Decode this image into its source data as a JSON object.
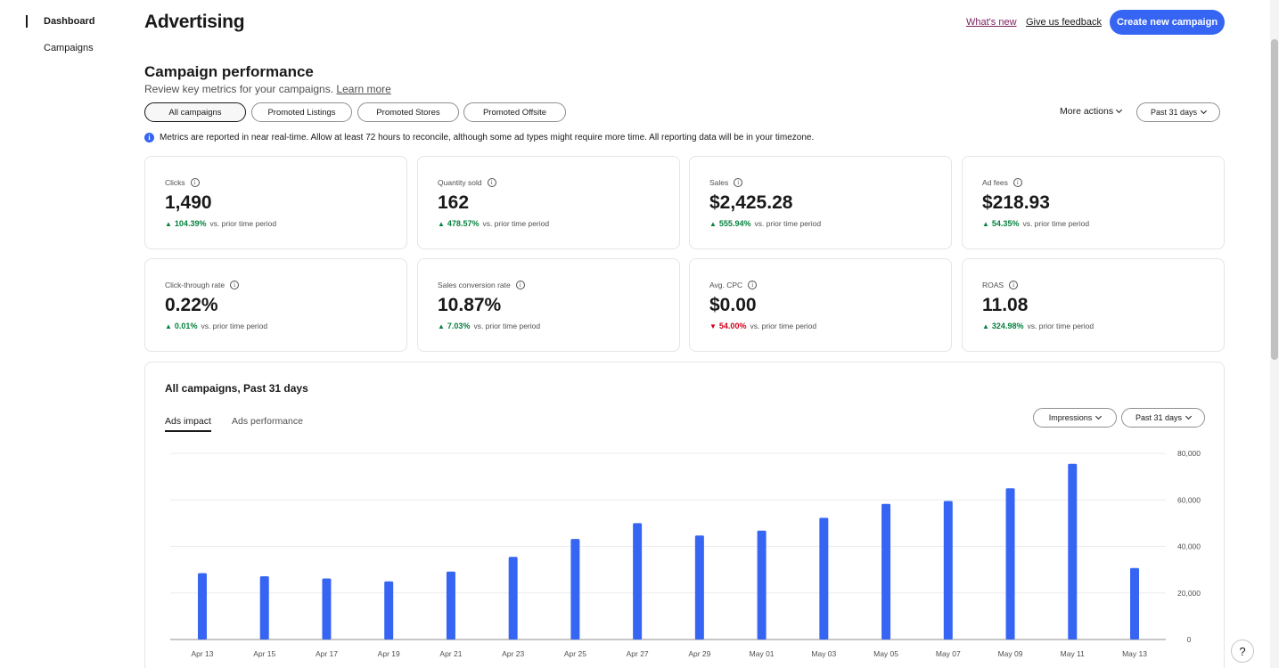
{
  "sidebar": {
    "items": [
      {
        "label": "Dashboard",
        "active": true
      },
      {
        "label": "Campaigns",
        "active": false
      }
    ]
  },
  "header": {
    "title": "Advertising",
    "whats_new": "What's new",
    "feedback": "Give us feedback",
    "create_button": "Create new campaign"
  },
  "performance": {
    "title": "Campaign performance",
    "subtitle": "Review key metrics for your campaigns.",
    "learn_more": "Learn more",
    "filters": [
      "All campaigns",
      "Promoted Listings",
      "Promoted Stores",
      "Promoted Offsite"
    ],
    "selected_filter": "All campaigns",
    "more_actions": "More actions",
    "date_range": "Past 31 days",
    "info_text": "Metrics are reported in near real-time. Allow at least 72 hours to reconcile, although some ad types might require more time. All reporting data will be in your timezone."
  },
  "metrics": [
    {
      "label": "Clicks",
      "value": "1,490",
      "change": "104.39%",
      "direction": "up",
      "compare": "vs. prior time period"
    },
    {
      "label": "Quantity sold",
      "value": "162",
      "change": "478.57%",
      "direction": "up",
      "compare": "vs. prior time period"
    },
    {
      "label": "Sales",
      "value": "$2,425.28",
      "change": "555.94%",
      "direction": "up",
      "compare": "vs. prior time period"
    },
    {
      "label": "Ad fees",
      "value": "$218.93",
      "change": "54.35%",
      "direction": "up",
      "compare": "vs. prior time period"
    },
    {
      "label": "Click-through rate",
      "value": "0.22%",
      "change": "0.01%",
      "direction": "up",
      "compare": "vs. prior time period"
    },
    {
      "label": "Sales conversion rate",
      "value": "10.87%",
      "change": "7.03%",
      "direction": "up",
      "compare": "vs. prior time period"
    },
    {
      "label": "Avg. CPC",
      "value": "$0.00",
      "change": "54.00%",
      "direction": "down",
      "compare": "vs. prior time period"
    },
    {
      "label": "ROAS",
      "value": "11.08",
      "change": "324.98%",
      "direction": "up",
      "compare": "vs. prior time period"
    }
  ],
  "chart_panel": {
    "title": "All campaigns, Past 31 days",
    "tabs": [
      {
        "label": "Ads impact",
        "active": true
      },
      {
        "label": "Ads performance",
        "active": false
      }
    ],
    "metric_select": "Impressions",
    "date_select": "Past 31 days"
  },
  "colors": {
    "accent": "#3665f3",
    "positive": "#05823f",
    "negative": "#d0011b",
    "bar": "#3665f3"
  },
  "chart_data": {
    "type": "bar",
    "categories": [
      "Apr 13",
      "Apr 15",
      "Apr 17",
      "Apr 19",
      "Apr 21",
      "Apr 23",
      "Apr 25",
      "Apr 27",
      "Apr 29",
      "May 01",
      "May 03",
      "May 05",
      "May 07",
      "May 09",
      "May 11",
      "May 13"
    ],
    "values": [
      28500,
      27200,
      26200,
      25000,
      29200,
      35500,
      43200,
      50000,
      44700,
      46800,
      52300,
      58300,
      59500,
      65000,
      75500,
      30700
    ],
    "ylim": [
      0,
      80000
    ],
    "yticks": [
      0,
      20000,
      40000,
      60000,
      80000
    ],
    "ytick_labels": [
      "0",
      "20,000",
      "40,000",
      "60,000",
      "80,000"
    ],
    "y_axis_side": "right",
    "grid": true
  },
  "help": "?"
}
